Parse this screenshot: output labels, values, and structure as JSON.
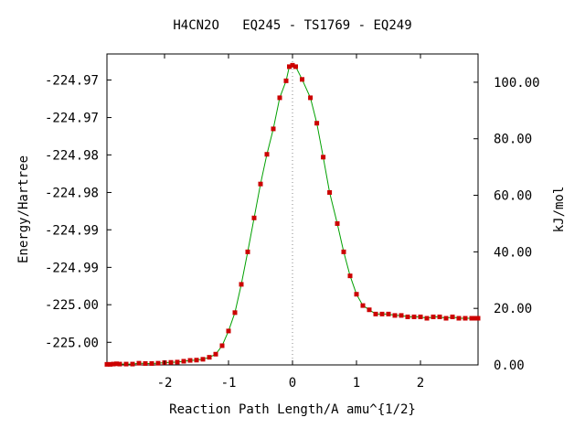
{
  "chart_data": {
    "type": "line",
    "title": "H4CN2O   EQ245 - TS1769 - EQ249",
    "xlabel": "Reaction Path Length/A amu^{1/2}",
    "ylabel_left": "Energy/Hartree",
    "ylabel_right": "kJ/mol",
    "xlim": [
      -2.9,
      2.9
    ],
    "y_right_lim": [
      0,
      110
    ],
    "x_ticks": [
      -2,
      -1,
      0,
      1,
      2
    ],
    "x_tick_labels": [
      "-2",
      "-1",
      "0",
      "1",
      "2"
    ],
    "y_right_ticks": [
      0,
      20,
      40,
      60,
      80,
      100
    ],
    "y_right_tick_labels": [
      "0.00",
      "20.00",
      "40.00",
      "60.00",
      "80.00",
      "100.00"
    ],
    "y_left_ticks_kj": [
      8,
      21.3,
      34.5,
      47.8,
      61,
      74.3,
      87.5,
      100.8
    ],
    "y_left_tick_labels": [
      "-225.00",
      "-225.00",
      "-224.99",
      "-224.99",
      "-224.98",
      "-224.98",
      "-224.97",
      "-224.97"
    ],
    "ts_marker_x": 0,
    "line_color": "#00a000",
    "marker_color": "#cc0000",
    "series": [
      {
        "x": [
          -2.9,
          -2.85,
          -2.8,
          -2.75,
          -2.7,
          -2.6,
          -2.5,
          -2.4,
          -2.3,
          -2.2,
          -2.1,
          -2.0,
          -1.9,
          -1.8,
          -1.7,
          -1.6,
          -1.5,
          -1.4,
          -1.3,
          -1.2,
          -1.1,
          -1.0,
          -0.9,
          -0.8,
          -0.7,
          -0.6,
          -0.5,
          -0.4,
          -0.3,
          -0.2,
          -0.1,
          -0.05,
          0.0,
          0.05,
          0.15,
          0.28,
          0.38,
          0.48,
          0.58,
          0.7,
          0.8,
          0.9,
          1.0,
          1.1,
          1.2,
          1.3,
          1.4,
          1.5,
          1.6,
          1.7,
          1.8,
          1.9,
          2.0,
          2.1,
          2.2,
          2.3,
          2.4,
          2.5,
          2.6,
          2.7,
          2.8,
          2.85,
          2.9
        ],
        "y": [
          0.2,
          0.2,
          0.3,
          0.4,
          0.3,
          0.3,
          0.3,
          0.6,
          0.5,
          0.5,
          0.6,
          0.8,
          0.9,
          1.0,
          1.3,
          1.6,
          1.7,
          2.0,
          2.7,
          3.8,
          6.8,
          12.0,
          18.5,
          28.5,
          40.0,
          52.0,
          64.0,
          74.5,
          83.5,
          94.5,
          100.5,
          105.5,
          106.0,
          105.5,
          101.0,
          94.5,
          85.5,
          73.5,
          61.0,
          50.0,
          40.0,
          31.5,
          25.0,
          21.0,
          19.5,
          18.0,
          18.0,
          18.0,
          17.5,
          17.5,
          17.0,
          17.0,
          17.0,
          16.5,
          17.0,
          17.0,
          16.5,
          17.0,
          16.5,
          16.5,
          16.5,
          16.5,
          16.5
        ]
      }
    ]
  }
}
